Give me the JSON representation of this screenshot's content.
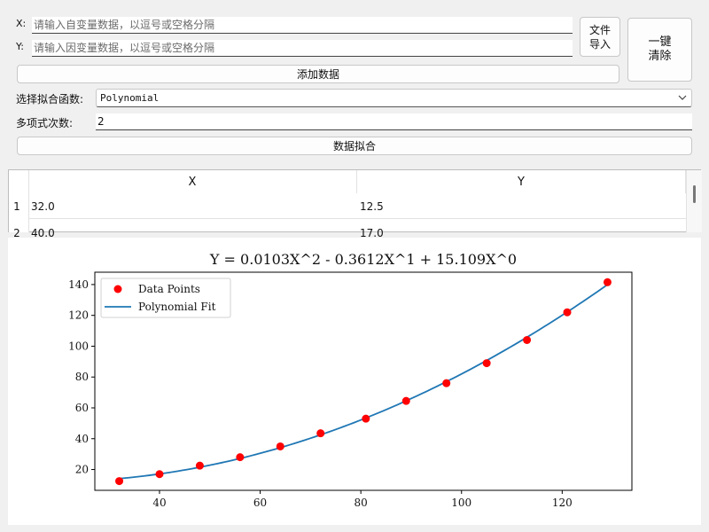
{
  "inputs": {
    "x_label": "X:",
    "y_label": "Y:",
    "x_placeholder": "请输入自变量数据，以逗号或空格分隔",
    "y_placeholder": "请输入因变量数据，以逗号或空格分隔",
    "x_value": "",
    "y_value": ""
  },
  "buttons": {
    "file_import_line1": "文件",
    "file_import_line2": "导入",
    "clear_line1": "一键",
    "clear_line2": "清除",
    "add_data": "添加数据",
    "fit": "数据拟合"
  },
  "fit_function": {
    "label": "选择拟合函数:",
    "selected": "Polynomial"
  },
  "degree": {
    "label": "多项式次数:",
    "value": "2"
  },
  "table": {
    "headers": [
      "X",
      "Y"
    ],
    "rows": [
      {
        "index": "1",
        "x": "32.0",
        "y": "12.5"
      },
      {
        "index": "2",
        "x": "40.0",
        "y": "17.0"
      }
    ]
  },
  "chart_data": {
    "type": "scatter",
    "title": "Y = 0.0103X^2 - 0.3612X^1 + 15.109X^0",
    "xlabel": "",
    "ylabel": "",
    "xlim": [
      27.15,
      133.85
    ],
    "ylim": [
      6.5,
      148.0
    ],
    "xticks": [
      40,
      60,
      80,
      100,
      120
    ],
    "yticks": [
      20,
      40,
      60,
      80,
      100,
      120,
      140
    ],
    "legend_position": "top-left",
    "series": [
      {
        "name": "Data Points",
        "kind": "scatter",
        "color": "#ff0000",
        "x": [
          32,
          40,
          48,
          56,
          64,
          72,
          81,
          89,
          97,
          105,
          113,
          121,
          129
        ],
        "y": [
          12.5,
          17.0,
          22.5,
          28.0,
          35.0,
          43.5,
          53.0,
          64.5,
          76.0,
          89.0,
          104.0,
          122.0,
          141.5
        ]
      },
      {
        "name": "Polynomial Fit",
        "kind": "line",
        "color": "#1f77b4",
        "coefficients": [
          0.0103,
          -0.3612,
          15.109
        ]
      }
    ]
  }
}
